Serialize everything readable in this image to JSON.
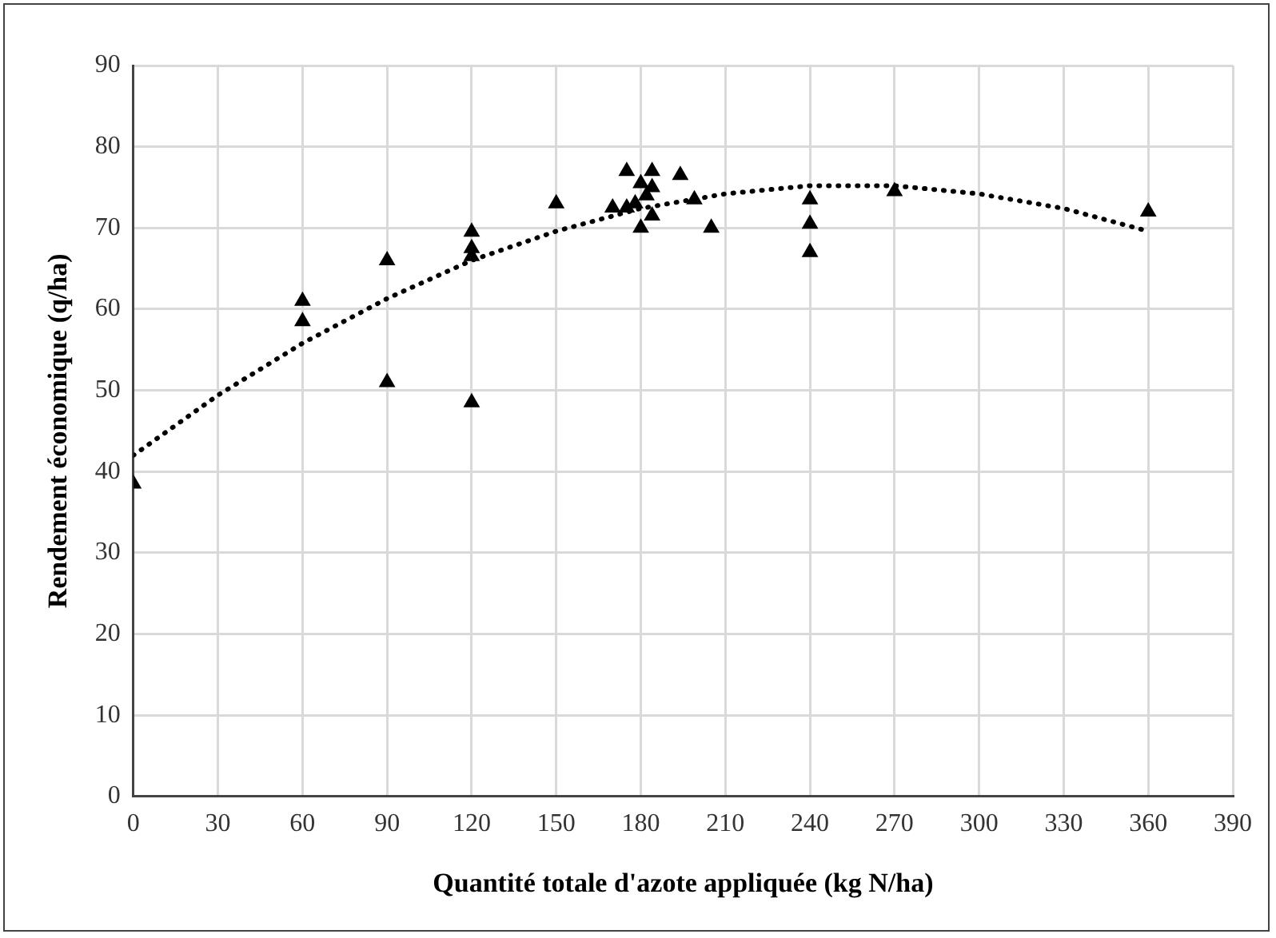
{
  "chart_data": {
    "type": "scatter",
    "xlabel": "Quantité totale d'azote appliquée (kg N/ha)",
    "ylabel": "Rendement économique (q/ha)",
    "xlim": [
      0,
      390
    ],
    "xticks": [
      0,
      30,
      60,
      90,
      120,
      150,
      180,
      210,
      240,
      270,
      300,
      330,
      360,
      390
    ],
    "ylim": [
      0,
      90
    ],
    "yticks": [
      0,
      10,
      20,
      30,
      40,
      50,
      60,
      70,
      80,
      90
    ],
    "grid": true,
    "series": [
      {
        "color": "#000000",
        "marker": "triangle",
        "x": [
          0,
          60,
          60,
          90,
          90,
          120,
          120,
          120,
          120,
          150,
          170,
          175,
          175,
          178,
          180,
          180,
          182,
          184,
          184,
          184,
          194,
          199,
          205,
          240,
          240,
          240,
          270,
          360
        ],
        "values": [
          38.5,
          61,
          58.5,
          66,
          51,
          69.5,
          67.5,
          66.5,
          48.5,
          73,
          72.5,
          77,
          72.5,
          73,
          75.5,
          70,
          74,
          77,
          75,
          71.5,
          76.5,
          73.5,
          70,
          73.5,
          70.5,
          67,
          74.5,
          72
        ]
      },
      {
        "type": "line",
        "color": "#000000",
        "marker": "none",
        "line_style": "dotted",
        "x": [
          0,
          30,
          60,
          90,
          120,
          150,
          180,
          210,
          240,
          270,
          300,
          330,
          360
        ],
        "values": [
          42,
          49.4,
          55.8,
          61.3,
          66,
          69.6,
          72.4,
          74.2,
          75.2,
          75.2,
          74.2,
          72.4,
          69.6
        ]
      }
    ]
  }
}
